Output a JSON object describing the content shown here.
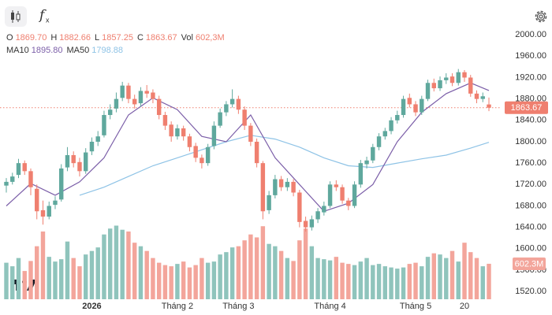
{
  "chart_data": {
    "type": "candlestick",
    "legend": [
      {
        "key": "O",
        "text": "1869.70"
      },
      {
        "key": "H",
        "text": "1882.66"
      },
      {
        "key": "L",
        "text": "1857.25"
      },
      {
        "key": "C",
        "text": "1863.67"
      },
      {
        "key": "Vol",
        "text": "602,3M"
      }
    ],
    "ma_legend": [
      {
        "key": "MA10",
        "text": "1895.80",
        "color": "#7b5ea8"
      },
      {
        "key": "MA50",
        "text": "1798.88",
        "color": "#8ec3e6"
      }
    ],
    "up_color": "#5fa89d",
    "down_color": "#ef7f6f",
    "volume_up_color": "#8fc4bc",
    "volume_down_color": "#f3a59b",
    "ylim": [
      1505.5,
      2065
    ],
    "yticks": [
      {
        "value": 2000,
        "label": "2000.00"
      },
      {
        "value": 1960,
        "label": "1960.00"
      },
      {
        "value": 1920,
        "label": "1920.00"
      },
      {
        "value": 1880,
        "label": "1880.00"
      },
      {
        "value": 1840,
        "label": "1840.00"
      },
      {
        "value": 1800,
        "label": "1800.00"
      },
      {
        "value": 1760,
        "label": "1760.00"
      },
      {
        "value": 1720,
        "label": "1720.00"
      },
      {
        "value": 1680,
        "label": "1680.00"
      },
      {
        "value": 1640,
        "label": "1640.00"
      },
      {
        "value": 1600,
        "label": "1600.00"
      },
      {
        "value": 1560,
        "label": "1560.00"
      },
      {
        "value": 1520,
        "label": "1520.00"
      }
    ],
    "xticks": [
      {
        "value": 14,
        "label": "2026"
      },
      {
        "value": 28,
        "label": "Tháng 2"
      },
      {
        "value": 38,
        "label": "Tháng 3"
      },
      {
        "value": 53,
        "label": "Tháng 4"
      },
      {
        "value": 67,
        "label": "Tháng 5"
      },
      {
        "value": 75,
        "label": "20"
      }
    ],
    "candles": [
      [
        1718,
        1732,
        1705,
        1725
      ],
      [
        1725,
        1742,
        1720,
        1735
      ],
      [
        1738,
        1768,
        1732,
        1760
      ],
      [
        1760,
        1765,
        1738,
        1745
      ],
      [
        1745,
        1750,
        1700,
        1715
      ],
      [
        1712,
        1720,
        1655,
        1670
      ],
      [
        1672,
        1690,
        1645,
        1660
      ],
      [
        1660,
        1688,
        1655,
        1680
      ],
      [
        1682,
        1698,
        1674,
        1690
      ],
      [
        1692,
        1758,
        1688,
        1750
      ],
      [
        1752,
        1790,
        1745,
        1775
      ],
      [
        1775,
        1782,
        1752,
        1760
      ],
      [
        1762,
        1770,
        1735,
        1745
      ],
      [
        1745,
        1788,
        1740,
        1780
      ],
      [
        1782,
        1808,
        1775,
        1800
      ],
      [
        1800,
        1820,
        1792,
        1810
      ],
      [
        1812,
        1858,
        1808,
        1850
      ],
      [
        1850,
        1870,
        1842,
        1860
      ],
      [
        1862,
        1892,
        1855,
        1880
      ],
      [
        1882,
        1912,
        1876,
        1905
      ],
      [
        1905,
        1910,
        1872,
        1880
      ],
      [
        1880,
        1888,
        1862,
        1870
      ],
      [
        1872,
        1902,
        1866,
        1895
      ],
      [
        1895,
        1906,
        1882,
        1890
      ],
      [
        1892,
        1898,
        1872,
        1880
      ],
      [
        1880,
        1886,
        1842,
        1850
      ],
      [
        1850,
        1856,
        1822,
        1830
      ],
      [
        1832,
        1838,
        1800,
        1810
      ],
      [
        1810,
        1832,
        1804,
        1825
      ],
      [
        1825,
        1830,
        1802,
        1810
      ],
      [
        1810,
        1815,
        1782,
        1790
      ],
      [
        1792,
        1798,
        1762,
        1770
      ],
      [
        1770,
        1776,
        1750,
        1760
      ],
      [
        1760,
        1796,
        1755,
        1790
      ],
      [
        1792,
        1838,
        1786,
        1830
      ],
      [
        1830,
        1862,
        1826,
        1855
      ],
      [
        1855,
        1876,
        1848,
        1870
      ],
      [
        1870,
        1898,
        1864,
        1880
      ],
      [
        1880,
        1886,
        1852,
        1860
      ],
      [
        1860,
        1866,
        1822,
        1830
      ],
      [
        1830,
        1835,
        1792,
        1800
      ],
      [
        1800,
        1806,
        1752,
        1760
      ],
      [
        1760,
        1764,
        1655,
        1670
      ],
      [
        1672,
        1708,
        1665,
        1700
      ],
      [
        1700,
        1738,
        1694,
        1730
      ],
      [
        1730,
        1736,
        1708,
        1715
      ],
      [
        1715,
        1732,
        1708,
        1725
      ],
      [
        1725,
        1730,
        1698,
        1705
      ],
      [
        1705,
        1710,
        1640,
        1650
      ],
      [
        1652,
        1660,
        1632,
        1640
      ],
      [
        1640,
        1662,
        1634,
        1655
      ],
      [
        1655,
        1676,
        1648,
        1670
      ],
      [
        1668,
        1688,
        1662,
        1680
      ],
      [
        1680,
        1726,
        1676,
        1720
      ],
      [
        1720,
        1728,
        1708,
        1715
      ],
      [
        1715,
        1720,
        1684,
        1690
      ],
      [
        1690,
        1695,
        1672,
        1680
      ],
      [
        1680,
        1726,
        1676,
        1720
      ],
      [
        1720,
        1766,
        1714,
        1760
      ],
      [
        1758,
        1772,
        1750,
        1765
      ],
      [
        1765,
        1796,
        1760,
        1790
      ],
      [
        1790,
        1816,
        1784,
        1810
      ],
      [
        1810,
        1826,
        1804,
        1820
      ],
      [
        1820,
        1846,
        1814,
        1840
      ],
      [
        1840,
        1858,
        1834,
        1850
      ],
      [
        1850,
        1886,
        1845,
        1880
      ],
      [
        1882,
        1890,
        1864,
        1870
      ],
      [
        1870,
        1876,
        1848,
        1855
      ],
      [
        1855,
        1886,
        1850,
        1880
      ],
      [
        1880,
        1916,
        1876,
        1910
      ],
      [
        1910,
        1918,
        1894,
        1900
      ],
      [
        1900,
        1922,
        1895,
        1915
      ],
      [
        1915,
        1928,
        1908,
        1920
      ],
      [
        1922,
        1928,
        1904,
        1910
      ],
      [
        1910,
        1936,
        1905,
        1930
      ],
      [
        1930,
        1934,
        1912,
        1920
      ],
      [
        1920,
        1925,
        1884,
        1890
      ],
      [
        1890,
        1896,
        1872,
        1880
      ],
      [
        1880,
        1892,
        1874,
        1885
      ],
      [
        1869.7,
        1882.66,
        1857.25,
        1863.67
      ]
    ],
    "volume_ylim": [
      0,
      2540
    ],
    "volume": [
      620,
      560,
      700,
      480,
      650,
      900,
      1150,
      720,
      640,
      680,
      980,
      700,
      560,
      760,
      820,
      880,
      1100,
      1200,
      1250,
      1180,
      1150,
      960,
      900,
      820,
      700,
      620,
      580,
      560,
      600,
      640,
      540,
      580,
      700,
      620,
      640,
      760,
      800,
      880,
      900,
      1000,
      1100,
      1050,
      1240,
      940,
      900,
      820,
      700,
      650,
      1000,
      1200,
      900,
      700,
      680,
      660,
      720,
      620,
      600,
      580,
      640,
      700,
      580,
      600,
      560,
      540,
      520,
      540,
      600,
      620,
      560,
      720,
      780,
      760,
      700,
      820,
      640,
      960,
      800,
      700,
      560,
      602.3
    ],
    "ma_index": [
      0,
      4,
      8,
      12,
      16,
      20,
      24,
      28,
      32,
      36,
      40,
      44,
      48,
      52,
      56,
      60,
      64,
      68,
      72,
      76,
      79
    ],
    "ma10": [
      1680,
      1722,
      1700,
      1725,
      1770,
      1850,
      1882,
      1860,
      1810,
      1800,
      1850,
      1770,
      1720,
      1670,
      1685,
      1720,
      1800,
      1855,
      1890,
      1910,
      1895.8
    ],
    "ma50": [
      null,
      null,
      null,
      1700,
      1715,
      1735,
      1755,
      1770,
      1785,
      1800,
      1812,
      1805,
      1790,
      1770,
      1755,
      1752,
      1760,
      1768,
      1775,
      1788,
      1798.88
    ],
    "last_price_label": "1863.67",
    "last_volume_label": "602.3M"
  }
}
